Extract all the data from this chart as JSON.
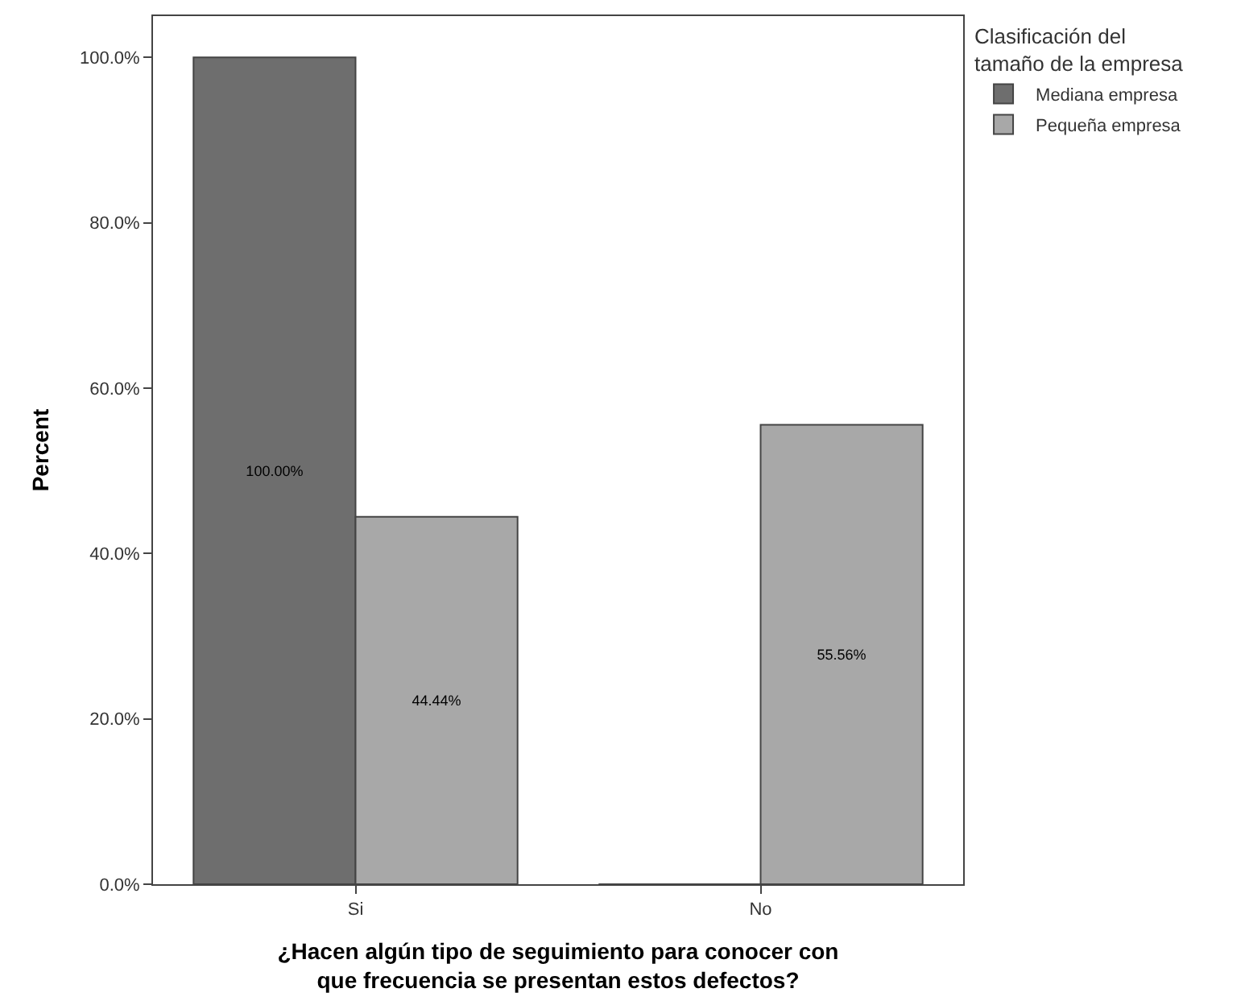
{
  "chart_data": {
    "type": "bar",
    "xlabel": "¿Hacen algún tipo de seguimiento para conocer con\nque frecuencia se presentan estos defectos?",
    "ylabel": "Percent",
    "legend_title": "Clasificación del\ntamaño de la empresa",
    "categories": [
      "Si",
      "No"
    ],
    "series": [
      {
        "name": "Mediana empresa",
        "color": "#6e6e6e",
        "values": [
          100,
          0
        ],
        "value_labels": [
          "100.00%",
          null
        ]
      },
      {
        "name": "Pequeña empresa",
        "color": "#a8a8a8",
        "values": [
          44.44,
          55.56
        ],
        "value_labels": [
          "44.44%",
          "55.56%"
        ]
      }
    ],
    "ylim": [
      0,
      105
    ],
    "yticks": [
      {
        "value": 0,
        "label": "0.0%"
      },
      {
        "value": 20,
        "label": "20.0%"
      },
      {
        "value": 40,
        "label": "40.0%"
      },
      {
        "value": 60,
        "label": "60.0%"
      },
      {
        "value": 80,
        "label": "80.0%"
      },
      {
        "value": 100,
        "label": "100.0%"
      }
    ],
    "legend": "top right"
  }
}
